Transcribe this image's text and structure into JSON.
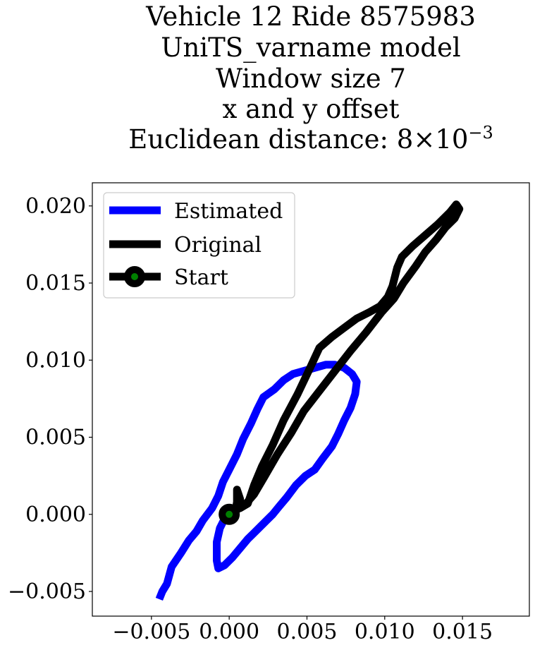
{
  "chart_data": {
    "type": "line",
    "title_lines": [
      "Vehicle 12 Ride 8575983",
      "UniTS_varname model",
      "Window size 7",
      "x and y offset",
      "Euclidean distance: 8×10"
    ],
    "title_exponent": "−3",
    "xlim": [
      -0.0088,
      0.0193
    ],
    "ylim": [
      -0.0066,
      0.0215
    ],
    "xticks": [
      -0.005,
      0.0,
      0.005,
      0.01,
      0.015
    ],
    "xtick_labels": [
      "−0.005",
      "0.000",
      "0.005",
      "0.010",
      "0.015"
    ],
    "yticks": [
      -0.005,
      0.0,
      0.005,
      0.01,
      0.015,
      0.02
    ],
    "ytick_labels": [
      "−0.005",
      "0.000",
      "0.005",
      "0.010",
      "0.015",
      "0.020"
    ],
    "grid": false,
    "legend_position": "upper-left",
    "series": [
      {
        "name": "Estimated",
        "color": "#0000ff",
        "points": [
          [
            -0.0045,
            -0.0055
          ],
          [
            -0.0043,
            -0.005
          ],
          [
            -0.004,
            -0.0045
          ],
          [
            -0.0037,
            -0.0034
          ],
          [
            -0.0031,
            -0.0025
          ],
          [
            -0.0026,
            -0.0017
          ],
          [
            -0.0021,
            -0.0011
          ],
          [
            -0.0017,
            -0.0004
          ],
          [
            -0.0011,
            0.0004
          ],
          [
            -0.0007,
            0.0012
          ],
          [
            -0.0004,
            0.0021
          ],
          [
            0.0,
            0.0029
          ],
          [
            0.0005,
            0.0039
          ],
          [
            0.0009,
            0.0049
          ],
          [
            0.0014,
            0.0059
          ],
          [
            0.0018,
            0.0068
          ],
          [
            0.0022,
            0.0076
          ],
          [
            0.0029,
            0.0081
          ],
          [
            0.0035,
            0.0087
          ],
          [
            0.0041,
            0.0091
          ],
          [
            0.0048,
            0.0093
          ],
          [
            0.0055,
            0.0095
          ],
          [
            0.0062,
            0.0097
          ],
          [
            0.0068,
            0.0097
          ],
          [
            0.0074,
            0.0095
          ],
          [
            0.0079,
            0.0091
          ],
          [
            0.0082,
            0.0086
          ],
          [
            0.0081,
            0.0078
          ],
          [
            0.0078,
            0.0069
          ],
          [
            0.0074,
            0.0061
          ],
          [
            0.007,
            0.0052
          ],
          [
            0.0066,
            0.0044
          ],
          [
            0.006,
            0.0036
          ],
          [
            0.0055,
            0.0029
          ],
          [
            0.0049,
            0.0025
          ],
          [
            0.0043,
            0.0019
          ],
          [
            0.0037,
            0.0011
          ],
          [
            0.0032,
            0.0005
          ],
          [
            0.0028,
            0.0
          ],
          [
            0.0023,
            -0.0005
          ],
          [
            0.0016,
            -0.0012
          ],
          [
            0.0012,
            -0.0016
          ],
          [
            0.0007,
            -0.0022
          ],
          [
            0.0002,
            -0.0028
          ],
          [
            -0.0003,
            -0.0033
          ],
          [
            -0.0007,
            -0.0035
          ],
          [
            -0.0008,
            -0.003
          ],
          [
            -0.0008,
            -0.0018
          ],
          [
            -0.0006,
            -0.0009
          ],
          [
            -0.0003,
            -0.0003
          ],
          [
            0.0,
            0.0
          ]
        ]
      },
      {
        "name": "Original",
        "color": "#000000",
        "points": [
          [
            0.0,
            0.0
          ],
          [
            0.0004,
            0.0002
          ],
          [
            0.0005,
            0.0008
          ],
          [
            0.0005,
            0.0016
          ],
          [
            0.0007,
            0.001
          ],
          [
            0.0007,
            0.0004
          ],
          [
            0.0012,
            0.0007
          ],
          [
            0.0016,
            0.0019
          ],
          [
            0.0021,
            0.0031
          ],
          [
            0.0028,
            0.0045
          ],
          [
            0.0035,
            0.0061
          ],
          [
            0.0044,
            0.0078
          ],
          [
            0.0052,
            0.0095
          ],
          [
            0.0058,
            0.0108
          ],
          [
            0.0066,
            0.0115
          ],
          [
            0.0074,
            0.0121
          ],
          [
            0.0082,
            0.0127
          ],
          [
            0.009,
            0.0131
          ],
          [
            0.0097,
            0.0135
          ],
          [
            0.0102,
            0.0141
          ],
          [
            0.0105,
            0.0148
          ],
          [
            0.0108,
            0.016
          ],
          [
            0.0111,
            0.0167
          ],
          [
            0.0118,
            0.0174
          ],
          [
            0.0126,
            0.0181
          ],
          [
            0.0134,
            0.0188
          ],
          [
            0.0142,
            0.0196
          ],
          [
            0.0146,
            0.0201
          ],
          [
            0.0148,
            0.0198
          ],
          [
            0.0145,
            0.0192
          ],
          [
            0.0139,
            0.0186
          ],
          [
            0.0133,
            0.0178
          ],
          [
            0.0126,
            0.017
          ],
          [
            0.012,
            0.0161
          ],
          [
            0.0112,
            0.015
          ],
          [
            0.0106,
            0.014
          ],
          [
            0.0098,
            0.0131
          ],
          [
            0.0088,
            0.0118
          ],
          [
            0.0078,
            0.0106
          ],
          [
            0.0068,
            0.0093
          ],
          [
            0.0058,
            0.008
          ],
          [
            0.0048,
            0.0067
          ],
          [
            0.004,
            0.0053
          ],
          [
            0.0031,
            0.0039
          ],
          [
            0.0023,
            0.0025
          ],
          [
            0.0016,
            0.0013
          ],
          [
            0.001,
            0.0006
          ],
          [
            0.0005,
            0.0003
          ],
          [
            0.0002,
            0.0001
          ],
          [
            0.0,
            0.0
          ]
        ]
      }
    ],
    "start_marker": {
      "label": "Start",
      "x": 0.0,
      "y": 0.0,
      "edge_color": "#000000",
      "face_color": "#008000"
    },
    "legend": [
      {
        "label": "Estimated",
        "color": "#0000ff",
        "marker": false
      },
      {
        "label": "Original",
        "color": "#000000",
        "marker": false
      },
      {
        "label": "Start",
        "color": "#000000",
        "marker": true,
        "marker_face": "#008000"
      }
    ]
  }
}
